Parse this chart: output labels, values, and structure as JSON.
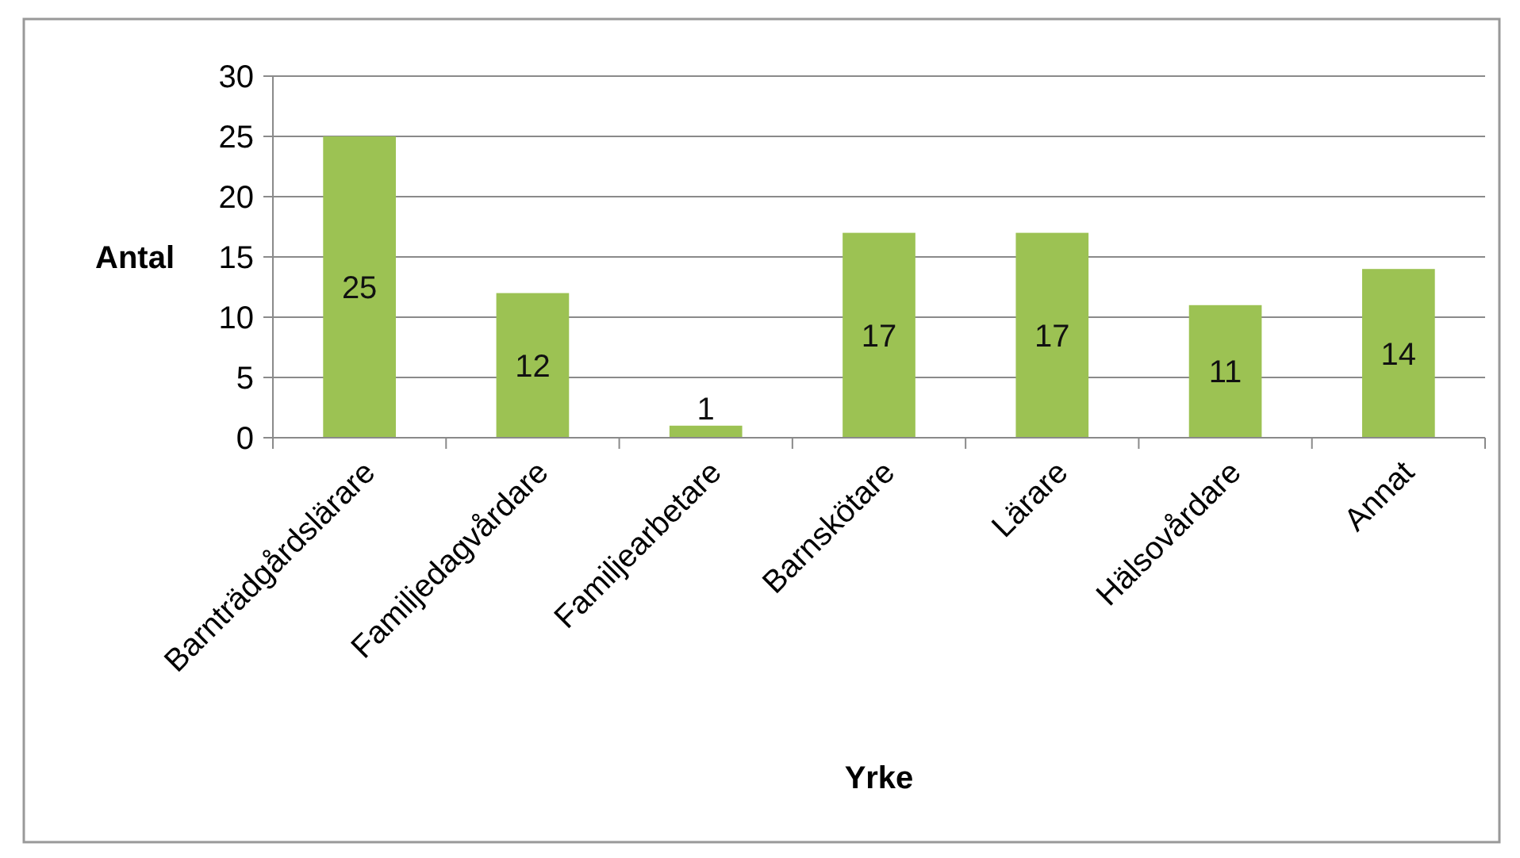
{
  "chart_data": {
    "type": "bar",
    "xlabel": "Yrke",
    "ylabel": "Antal",
    "categories": [
      "Barnträdgårdslärare",
      "Familjedagvårdare",
      "Familjearbetare",
      "Barnskötare",
      "Lärare",
      "Hälsovårdare",
      "Annat"
    ],
    "values": [
      25,
      12,
      1,
      17,
      17,
      11,
      14
    ],
    "color": "#9cc253",
    "ylim": [
      0,
      30
    ],
    "yticks": [
      0,
      5,
      10,
      15,
      20,
      25,
      30
    ],
    "grid": "y",
    "data_labels": true
  }
}
